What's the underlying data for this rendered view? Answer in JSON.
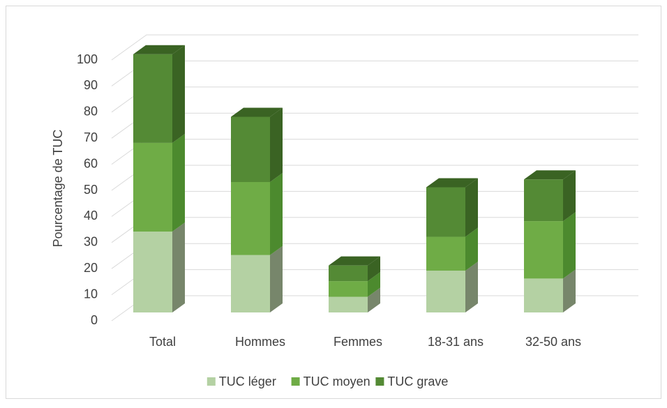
{
  "chart_data": {
    "type": "bar3d_stacked",
    "y_label": "Pourcentage de TUC",
    "categories": [
      "Total",
      "Hommes",
      "Femmes",
      "18-31 ans",
      "32-50 ans"
    ],
    "series": [
      {
        "name": "TUC léger",
        "color": "#b4d1a3",
        "side": "#77866b",
        "values": [
          31,
          22,
          6,
          16,
          13
        ]
      },
      {
        "name": "TUC moyen",
        "color": "#6fac46",
        "side": "#4c8a2e",
        "values": [
          34,
          28,
          6,
          13,
          22
        ]
      },
      {
        "name": "TUC grave",
        "color": "#548a35",
        "side": "#3a6323",
        "values": [
          34,
          25,
          6,
          19,
          16
        ]
      }
    ],
    "ylim": [
      0,
      100
    ],
    "yticks": [
      0,
      10,
      20,
      30,
      40,
      50,
      60,
      70,
      80,
      90,
      100
    ],
    "grid": true
  }
}
